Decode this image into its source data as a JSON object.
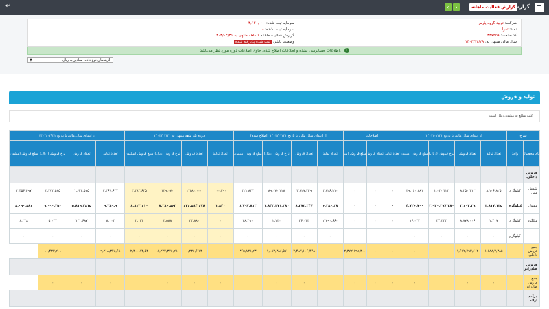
{
  "topbar": {
    "title": "گزارش فعالیت ماهانه",
    "report_btn": "گزارش فعالیت ماهانه",
    "prev": "‹",
    "next": "›",
    "back": "↩"
  },
  "info": {
    "company_label": "شرکت:",
    "company_value": "تولید گروه پارس",
    "symbol_label": "نماد:",
    "symbol_value": "تفرا",
    "code_label": "کد صنعت:",
    "code_value": "۳۴۷۲۵۹",
    "year_label": "سال مالی منتهی به:",
    "year_value": "۱۴۰۳/۱۲/۲۹",
    "capital_label": "سرمایه ثبت شده:",
    "capital_value": "۳,۱۲۰,۰۰۰",
    "unreg_label": "سرمایه ثبت نشده:",
    "unreg_value": "۰",
    "report_label": "گزارش فعالیت ماهانه",
    "period_label": "۱ ماهه",
    "period_end": "منتهی به ۱۴۰۳/۰۲/۳۱",
    "status_label": "وضعیت ناشر:",
    "status_value": "ثبت شده پذیرفته شده"
  },
  "alert": {
    "text": "اطلاعات حسابرسی نشده و اطلاعات اصلاح شده، حاوی اطلاعات دوره مورد نظر می‌باشد."
  },
  "filter": {
    "select_value": "گزینه‌های نوع داده، مقادیر به ریال"
  },
  "section": {
    "title": "تولید و فروش",
    "note": "کلیه مبالغ به میلیون ریال است"
  },
  "table": {
    "group_headers": [
      "شرح",
      "از ابتدای سال مالی تا تاریخ ۱۴۰۲/۰۲/۳۱",
      "اصلاحات",
      "از ابتدای سال مالی تا تاریخ ۱۴۰۳/۰۲/۳۱ (اصلاح شده)",
      "دوره یک ماهه منتهی به ۱۴۰۳/۰۲/۳۱",
      "از ابتدای سال مالی تا تاریخ ۱۴۰۳/۰۲/۳۱"
    ],
    "col_headers": [
      "نام محصول",
      "واحد",
      "تعداد تولید",
      "تعداد فروش",
      "نرخ فروش (ریال)",
      "مبلغ فروش (میلیون ریال)",
      "تعداد تولید",
      "تعداد فروش",
      "مبلغ فروش (میلیون ریال)",
      "تعداد تولید",
      "تعداد فروش",
      "نرخ فروش (ریال)",
      "مبلغ فروش (میلیون ریال)",
      "تعداد تولید",
      "تعداد فروش",
      "نرخ فروش (ریال)",
      "مبلغ فروش (میلیون ریال)",
      "تعداد تولید",
      "تعداد فروش",
      "نرخ فروش (ریال)",
      "مبلغ فروش (میلیون ریال)"
    ],
    "cat_domestic": "فروش داخلی:",
    "rows": [
      {
        "name": "شمش مس",
        "unit": "کیلوگرم",
        "c": [
          "۸,۱۰۶,۸۲۵",
          "۸,۲۵۰,۳۱۲",
          "۱,۰۳۰,۳۲۲",
          "۳۹,۰۶۰,۸۸۱",
          "۰",
          "۰",
          "۰",
          "۳,۸۲۶,۲۱۰",
          "۳,۸۲۷,۳۳۹",
          "۸۹,۰۷۰,۲۲۸",
          "۳۲۱,۸۳۳",
          "۱۰۰,۲۹۰",
          "۲,۳۸۰,۰۰۰",
          "۱۳۹,۰۷۰",
          "۳,۳۸۳,۶۳۵",
          "۲,۳۶۷,۶۳۴",
          "۱,۶۴۳,۵۹۵",
          "۳,۲۷۲,۵۸۵",
          "۲,۴۵۶,۳۹۷"
        ],
        "bold": false
      },
      {
        "name": "مفتول",
        "unit": "کیلوگرم",
        "c": [
          "۳,۸۱۷,۱۳۵",
          "۳,۶۰۳,۳۹",
          "۳,۹۳۰,۳۹۷,۳۸۰",
          "۴,۷۲۶,۷۰۰",
          "۰",
          "۰",
          "۰",
          "۶,۳۸۶,۳۸",
          "۸,۳۷۳,۳۴۷",
          "۱,۸۴۳,۳۷۱,۳۸۰",
          "۸,۷۹۷,۸۱۳",
          "۱,۸۴۰",
          "۶۴۶,۵۸۴,۶۷۸",
          "۸,۳۸۶,۵۶۳",
          "۸,۸۱۲,۶۱۰",
          "۹,۲۸۹,۹",
          "۵,۸۱۹,۴۸۱۵",
          "۹,۰۹۰,۲۵۰",
          "۸,۰۹۰,۸۸۶"
        ],
        "bold": true
      },
      {
        "name": "میلگرد",
        "unit": "کیلوگرم",
        "c": [
          "۲,۴۰۷",
          "۸,۷۷۸,۰۰۶",
          "۳۴,۳۳۳",
          "۱۶,۰۳۳",
          "۰",
          "۰",
          "۰",
          "۲,۷۹۰,۶۶۰",
          "۳۶,۰۳۳",
          "۲,۲۳۰",
          "۲۸,۳۹۰",
          "۰",
          "۲۳,۸۸۰",
          "۳,۵۸۸",
          "۲,۰۳۳",
          "۸,۰۰۳",
          "۱۳۰,۶۸۷",
          "۵,۰۳۳",
          "۸,۲۲۸"
        ],
        "bold": false
      },
      {
        "name": "",
        "unit": "کیلوگرم",
        "c": [
          "۰",
          "۰",
          "۰",
          "۰",
          "",
          "",
          "",
          "۰",
          "۰",
          "۰",
          "۰",
          "۰",
          "۰",
          "۰",
          "۰",
          "۰",
          "۰",
          "۰",
          "۰"
        ],
        "bold": false
      }
    ],
    "total_domestic_label": "جمع فروش داخلی",
    "total_domestic": [
      "",
      "۱,۶۸۸,۳,۳۸۵",
      "۱,۶۷۲,۷۹۳,۶۰۲",
      "",
      "۰",
      "۰",
      "۰",
      "۲,۳۷۲,۱۹۹,۳۰۰",
      "",
      "۲,۴۸۷,۱۰۶,۴۴۸",
      "۱,۰۸۳,۳۸۶,۵۷",
      "۳۶۵,۸۳۸,۲۳",
      "",
      "۱,۲۳۶,۶,۷۳",
      "۸,۲۲۲,۳۲۶,۲۸",
      "۲,۳۰۰,۷۳,۵۳",
      "۹,۲۰۸,۳۴۸,۶۸",
      "",
      "۱۰,۴۳۳,۲۰۱"
    ],
    "cat_export": "فروش صادراتی:",
    "export_row_label": "جمع فروش صادراتی",
    "export_row": [
      "",
      "۰",
      "۰",
      "",
      "۰",
      "۰",
      "۰",
      "۰",
      "",
      "۰",
      "۰",
      "",
      "۰",
      "۰",
      "۰",
      "",
      "۰",
      "۰",
      "۰"
    ],
    "cat_service": "درآمد ارائه"
  }
}
